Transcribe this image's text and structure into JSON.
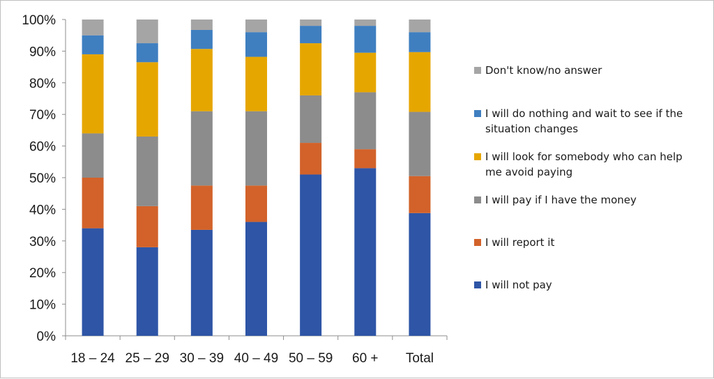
{
  "chart_data": {
    "type": "bar",
    "stacked": true,
    "categories": [
      "18 – 24",
      "25 – 29",
      "30 – 39",
      "40 – 49",
      "50 – 59",
      "60 +",
      "Total"
    ],
    "ylim": [
      0,
      100
    ],
    "yticks": [
      "0%",
      "10%",
      "20%",
      "30%",
      "40%",
      "50%",
      "60%",
      "70%",
      "80%",
      "90%",
      "100%"
    ],
    "grid": false,
    "legend_position": "right",
    "series": [
      {
        "name": "I will not pay",
        "color": "#2e55a6",
        "values": [
          34,
          28,
          33.5,
          36,
          51,
          53,
          38.8
        ]
      },
      {
        "name": "I will report it",
        "color": "#d2622a",
        "values": [
          16,
          13,
          14,
          11.5,
          10,
          6,
          11.7
        ]
      },
      {
        "name": "I will pay if I have the money",
        "color": "#8c8c8c",
        "values": [
          14,
          22,
          23.5,
          23.5,
          15,
          18,
          20.3
        ]
      },
      {
        "name": "I will look for somebody who can help me avoid paying",
        "color": "#e6a600",
        "values": [
          25,
          23.5,
          19.7,
          17.2,
          16.5,
          12.5,
          18.9
        ]
      },
      {
        "name": "I will do nothing and wait to see if the situation changes",
        "color": "#3f7fc0",
        "values": [
          6,
          6,
          6,
          7.8,
          5.5,
          8.5,
          6.3
        ]
      },
      {
        "name": "Don't know/no answer",
        "color": "#a5a5a5",
        "values": [
          5,
          7.5,
          3.3,
          4,
          2,
          2,
          4
        ]
      }
    ],
    "legend": [
      {
        "lines": [
          "Don't know/no answer"
        ],
        "color": "#a5a5a5"
      },
      {
        "lines": [
          "I will do nothing and wait to see if the",
          "situation changes"
        ],
        "color": "#3f7fc0"
      },
      {
        "lines": [
          "I will look for somebody who can help",
          "me avoid paying"
        ],
        "color": "#e6a600"
      },
      {
        "lines": [
          "I will pay if I have the money"
        ],
        "color": "#8c8c8c"
      },
      {
        "lines": [
          "I will report it"
        ],
        "color": "#d2622a"
      },
      {
        "lines": [
          "I will not pay"
        ],
        "color": "#2e55a6"
      }
    ]
  }
}
